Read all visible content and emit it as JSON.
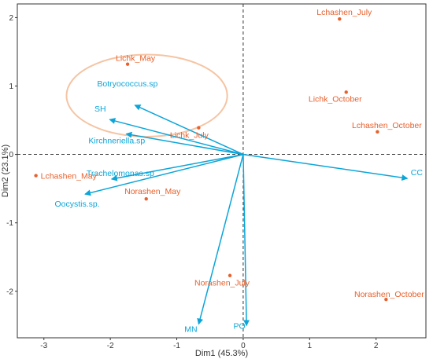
{
  "chart_data": {
    "type": "scatter",
    "title": "",
    "xlabel": "Dim1 (45.3%)",
    "ylabel": "Dim2 (23.1%)",
    "xlim": [
      -3.4,
      2.75
    ],
    "ylim": [
      -2.68,
      2.2
    ],
    "x_ticks": [
      -3,
      -2,
      -1,
      0,
      1,
      2
    ],
    "y_ticks": [
      -2,
      -1,
      0,
      1,
      2
    ],
    "grid": false,
    "colors": {
      "individuals": "#E8602C",
      "variables": "#0BA5D9",
      "ellipse": "#F5C4A3",
      "axis_frame": "#333333",
      "zero_lines": "#000000"
    },
    "individuals": [
      {
        "label": "Lchashen_July",
        "x": 1.45,
        "y": 1.98
      },
      {
        "label": "Lichk_May",
        "x": -1.74,
        "y": 1.32
      },
      {
        "label": "Lichk_October",
        "x": 1.55,
        "y": 0.91
      },
      {
        "label": "Lchashen_October",
        "x": 2.02,
        "y": 0.33
      },
      {
        "label": "Lichk_July",
        "x": -0.67,
        "y": 0.39
      },
      {
        "label": "Lchashen_May",
        "x": -3.12,
        "y": -0.31
      },
      {
        "label": "Norashen_May",
        "x": -1.46,
        "y": -0.65
      },
      {
        "label": "Norashen_July",
        "x": -0.2,
        "y": -1.77
      },
      {
        "label": "Norashen_October",
        "x": 2.15,
        "y": -2.12
      }
    ],
    "variables": [
      {
        "label": "Botryococcus.sp",
        "x": -1.63,
        "y": 0.72
      },
      {
        "label": "SH",
        "x": -2.01,
        "y": 0.51
      },
      {
        "label": "Kirchneriella.sp",
        "x": -1.76,
        "y": 0.3
      },
      {
        "label": "Trachelomonas.sp",
        "x": -1.98,
        "y": -0.36
      },
      {
        "label": "Oocystis.sp.",
        "x": -2.38,
        "y": -0.58
      },
      {
        "label": "CC",
        "x": 2.47,
        "y": -0.35
      },
      {
        "label": "MN",
        "x": -0.67,
        "y": -2.48
      },
      {
        "label": "PO",
        "x": 0.05,
        "y": -2.5
      }
    ],
    "ellipse": {
      "group": "Lichk",
      "cx": -1.45,
      "cy": 0.86,
      "rx": 1.21,
      "ry": 0.6
    }
  }
}
